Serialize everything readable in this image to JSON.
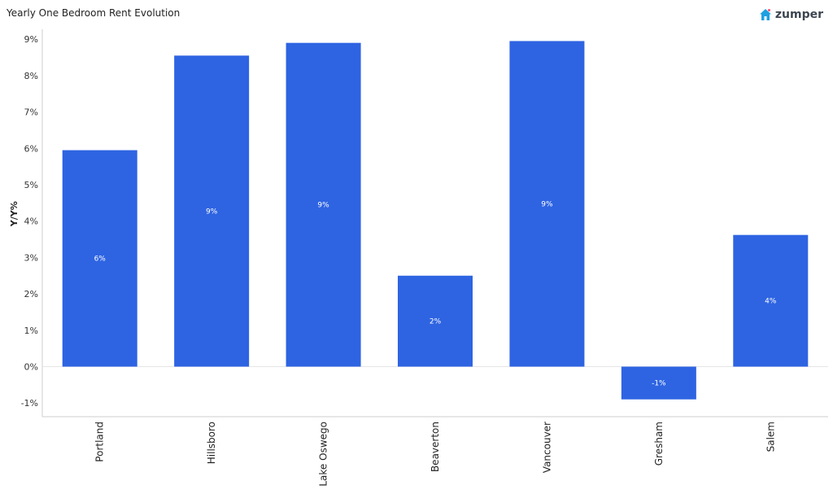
{
  "header": {
    "title": "Yearly One Bedroom Rent Evolution",
    "logo_text": "zumper",
    "logo_color": "#1fa0e0"
  },
  "chart_data": {
    "type": "bar",
    "categories": [
      "Portland",
      "Hillsboro",
      "Lake Oswego",
      "Beaverton",
      "Vancouver",
      "Gresham",
      "Salem"
    ],
    "values": [
      5.95,
      8.55,
      8.9,
      2.5,
      8.95,
      -0.9,
      3.62
    ],
    "data_labels": [
      "6%",
      "9%",
      "9%",
      "2%",
      "9%",
      "-1%",
      "4%"
    ],
    "title": "Yearly One Bedroom Rent Evolution",
    "xlabel": "",
    "ylabel": "Y/Y%",
    "ylim": [
      -1.3,
      9.4
    ],
    "yticks": [
      -1,
      0,
      1,
      2,
      3,
      4,
      5,
      6,
      7,
      8,
      9
    ],
    "ytick_labels": [
      "-1%",
      "0%",
      "1%",
      "2%",
      "3%",
      "4%",
      "5%",
      "6%",
      "7%",
      "8%",
      "9%"
    ],
    "bar_color": "#2e64e2",
    "grid": false,
    "legend": "none"
  }
}
